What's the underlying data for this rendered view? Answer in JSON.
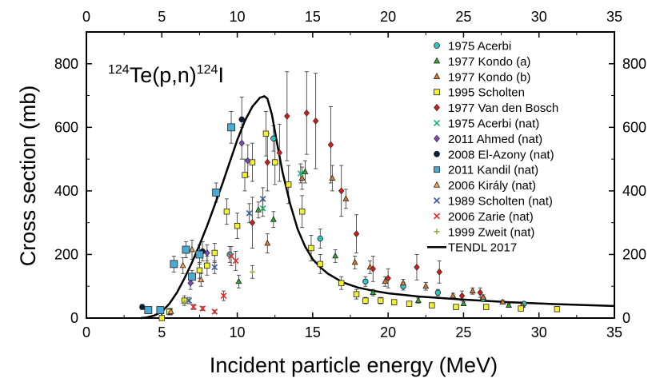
{
  "chart_data": {
    "type": "scatter",
    "title_annotation": {
      "mass_before": "124",
      "element_before": "Te(p,n)",
      "mass_after": "124",
      "element_after": "I"
    },
    "xlabel": "Incident particle energy (MeV)",
    "ylabel": "Cross section (mb)",
    "xlim": [
      0,
      35
    ],
    "ylim": [
      0,
      900
    ],
    "x_ticks": [
      "0",
      "5",
      "10",
      "15",
      "20",
      "25",
      "30",
      "35"
    ],
    "y_ticks": [
      "0",
      "200",
      "400",
      "600",
      "800"
    ],
    "tick_values_x": [
      0,
      5,
      10,
      15,
      20,
      25,
      30,
      35
    ],
    "tick_values_y": [
      0,
      200,
      400,
      600,
      800
    ],
    "legend_position": "top-right",
    "series": [
      {
        "name": "1975 Acerbi",
        "marker": "circle",
        "color": "#2ec4c4",
        "points": [
          [
            9.5,
            200,
            25
          ],
          [
            12.4,
            565,
            40
          ],
          [
            15.5,
            250,
            30
          ],
          [
            18.5,
            115,
            15
          ],
          [
            21.0,
            100,
            12
          ],
          [
            23.3,
            80,
            10
          ],
          [
            26.3,
            60,
            8
          ],
          [
            29.0,
            45,
            6
          ]
        ]
      },
      {
        "name": "1977 Kondo (a)",
        "marker": "triangle",
        "color": "#2ea82e",
        "points": [
          [
            10.1,
            115,
            20
          ],
          [
            11.4,
            340,
            25
          ],
          [
            12.4,
            310,
            25
          ],
          [
            14.5,
            460,
            35
          ],
          [
            16.5,
            195,
            20
          ],
          [
            19.0,
            80,
            10
          ],
          [
            22.0,
            55,
            8
          ],
          [
            25.0,
            45,
            6
          ],
          [
            28.0,
            40,
            5
          ]
        ]
      },
      {
        "name": "1977 Kondo (b)",
        "marker": "triangle",
        "color": "#d97a2e",
        "points": [
          [
            12.0,
            235,
            30
          ],
          [
            14.3,
            440,
            35
          ],
          [
            16.3,
            440,
            40
          ],
          [
            17.2,
            375,
            30
          ],
          [
            17.8,
            175,
            20
          ],
          [
            18.8,
            160,
            20
          ],
          [
            19.8,
            115,
            15
          ],
          [
            21.0,
            110,
            12
          ],
          [
            22.5,
            100,
            12
          ],
          [
            24.3,
            70,
            8
          ],
          [
            25.6,
            85,
            10
          ],
          [
            26.3,
            65,
            8
          ],
          [
            27.6,
            50,
            6
          ],
          [
            28.9,
            40,
            5
          ]
        ]
      },
      {
        "name": "1995 Scholten",
        "marker": "square",
        "color": "#f2f22e",
        "points": [
          [
            5.0,
            0,
            5
          ],
          [
            5.5,
            20,
            10
          ],
          [
            6.5,
            55,
            15
          ],
          [
            7.5,
            150,
            25
          ],
          [
            8.0,
            165,
            30
          ],
          [
            8.5,
            205,
            30
          ],
          [
            9.3,
            335,
            40
          ],
          [
            10.0,
            290,
            40
          ],
          [
            10.5,
            450,
            50
          ],
          [
            11.0,
            490,
            60
          ],
          [
            11.9,
            580,
            70
          ],
          [
            12.5,
            490,
            70
          ],
          [
            13.4,
            420,
            60
          ],
          [
            14.3,
            335,
            50
          ],
          [
            14.9,
            220,
            40
          ],
          [
            15.5,
            170,
            30
          ],
          [
            16.9,
            110,
            20
          ],
          [
            17.9,
            75,
            15
          ],
          [
            18.5,
            55,
            10
          ],
          [
            19.5,
            55,
            10
          ],
          [
            20.4,
            50,
            8
          ],
          [
            21.4,
            45,
            7
          ],
          [
            22.9,
            40,
            6
          ],
          [
            24.5,
            35,
            6
          ],
          [
            26.5,
            35,
            5
          ],
          [
            28.8,
            30,
            5
          ],
          [
            31.2,
            28,
            5
          ]
        ]
      },
      {
        "name": "1977 Van den Bosch",
        "marker": "diamond",
        "color": "#c81e1e",
        "points": [
          [
            11.0,
            300,
            80
          ],
          [
            12.0,
            490,
            90
          ],
          [
            12.8,
            520,
            90
          ],
          [
            13.3,
            635,
            140
          ],
          [
            14.6,
            645,
            130
          ],
          [
            15.2,
            620,
            150
          ],
          [
            16.2,
            545,
            120
          ],
          [
            16.9,
            400,
            80
          ],
          [
            17.9,
            265,
            60
          ],
          [
            19.0,
            155,
            40
          ],
          [
            20.0,
            125,
            30
          ],
          [
            21.9,
            160,
            40
          ],
          [
            23.4,
            145,
            35
          ],
          [
            24.9,
            70,
            15
          ],
          [
            26.1,
            80,
            15
          ]
        ]
      },
      {
        "name": "1975 Acerbi (nat)",
        "marker": "x",
        "color": "#1eb46e",
        "points": [
          [
            11.7,
            345,
            25
          ],
          [
            14.2,
            455,
            30
          ]
        ]
      },
      {
        "name": "2011 Ahmed (nat)",
        "marker": "diamond",
        "color": "#7a4ab4",
        "points": [
          [
            6.9,
            110,
            20
          ],
          [
            8.0,
            205,
            25
          ],
          [
            10.3,
            550,
            50
          ],
          [
            10.7,
            495,
            50
          ]
        ]
      },
      {
        "name": "2008 El-Azony (nat)",
        "marker": "circle",
        "color": "#0a1e3c",
        "points": [
          [
            3.7,
            35,
            8
          ],
          [
            7.7,
            210,
            30
          ],
          [
            10.3,
            625,
            70
          ]
        ]
      },
      {
        "name": "2011 Kandil (nat)",
        "marker": "square",
        "color": "#4aaad2",
        "points": [
          [
            4.1,
            25,
            5
          ],
          [
            4.9,
            25,
            5
          ],
          [
            5.8,
            170,
            25
          ],
          [
            6.6,
            215,
            25
          ],
          [
            7.0,
            130,
            20
          ],
          [
            7.5,
            200,
            30
          ],
          [
            8.6,
            395,
            30
          ],
          [
            9.6,
            600,
            50
          ]
        ]
      },
      {
        "name": "2006 Király (nat)",
        "marker": "triangle",
        "color": "#f5a050",
        "points": [
          [
            5.6,
            20,
            10
          ],
          [
            6.4,
            165,
            25
          ],
          [
            7.0,
            215,
            30
          ],
          [
            7.6,
            120,
            20
          ]
        ]
      },
      {
        "name": "1989 Scholten (nat)",
        "marker": "x",
        "color": "#3c5aa0",
        "points": [
          [
            6.8,
            55,
            10
          ],
          [
            8.5,
            160,
            20
          ],
          [
            10.8,
            330,
            30
          ],
          [
            11.7,
            375,
            35
          ]
        ]
      },
      {
        "name": "2006 Zarie (nat)",
        "marker": "x",
        "color": "#e62828",
        "points": [
          [
            7.1,
            35,
            8
          ],
          [
            7.7,
            30,
            6
          ],
          [
            8.5,
            20,
            5
          ],
          [
            9.1,
            70,
            15
          ],
          [
            9.6,
            195,
            30
          ],
          [
            9.9,
            180,
            30
          ]
        ]
      },
      {
        "name": "1999 Zweit (nat)",
        "marker": "plus",
        "color": "#96aa50",
        "points": [
          [
            6.5,
            50,
            10
          ],
          [
            11.0,
            145,
            20
          ]
        ]
      },
      {
        "name": "TENDL 2017",
        "marker": "line",
        "color": "#000000",
        "curve": [
          [
            3.6,
            0
          ],
          [
            4.0,
            2
          ],
          [
            4.5,
            8
          ],
          [
            5.0,
            20
          ],
          [
            5.5,
            45
          ],
          [
            6.0,
            80
          ],
          [
            6.5,
            125
          ],
          [
            7.0,
            175
          ],
          [
            7.5,
            230
          ],
          [
            8.0,
            290
          ],
          [
            8.5,
            355
          ],
          [
            9.0,
            420
          ],
          [
            9.5,
            490
          ],
          [
            10.0,
            560
          ],
          [
            10.5,
            620
          ],
          [
            11.0,
            665
          ],
          [
            11.5,
            693
          ],
          [
            11.8,
            698
          ],
          [
            12.0,
            690
          ],
          [
            12.3,
            640
          ],
          [
            12.6,
            560
          ],
          [
            13.0,
            460
          ],
          [
            13.5,
            360
          ],
          [
            14.0,
            280
          ],
          [
            14.5,
            225
          ],
          [
            15.0,
            185
          ],
          [
            15.5,
            160
          ],
          [
            16.0,
            140
          ],
          [
            17.0,
            112
          ],
          [
            18.0,
            96
          ],
          [
            19.0,
            86
          ],
          [
            20.0,
            78
          ],
          [
            22.0,
            68
          ],
          [
            25.0,
            58
          ],
          [
            28.0,
            50
          ],
          [
            31.0,
            44
          ],
          [
            35.0,
            38
          ]
        ]
      }
    ]
  }
}
